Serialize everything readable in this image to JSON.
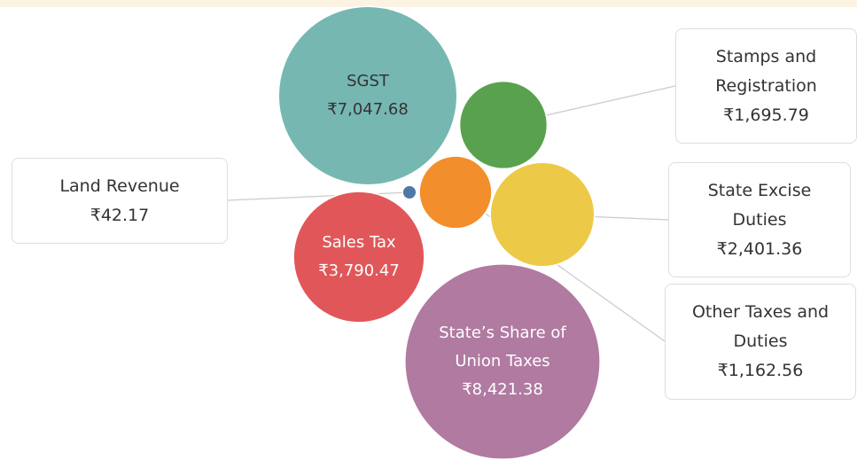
{
  "chart_data": {
    "type": "bubble",
    "categories": [
      "SGST",
      "State’s Share of Union Taxes",
      "Sales Tax",
      "State Excise Duties",
      "Stamps and Registration",
      "Other Taxes and Duties",
      "Land Revenue"
    ],
    "values": [
      7047.68,
      8421.38,
      3790.47,
      2401.36,
      1695.79,
      1162.56,
      42.17
    ],
    "value_labels": [
      "₹7,047.68",
      "₹8,421.38",
      "₹3,790.47",
      "₹2,401.36",
      "₹1,695.79",
      "₹1,162.56",
      "₹42.17"
    ],
    "colors": [
      "#76b7b2",
      "#b07aa1",
      "#e15759",
      "#edc948",
      "#59a14f",
      "#f28e2b",
      "#4e79a7"
    ]
  }
}
